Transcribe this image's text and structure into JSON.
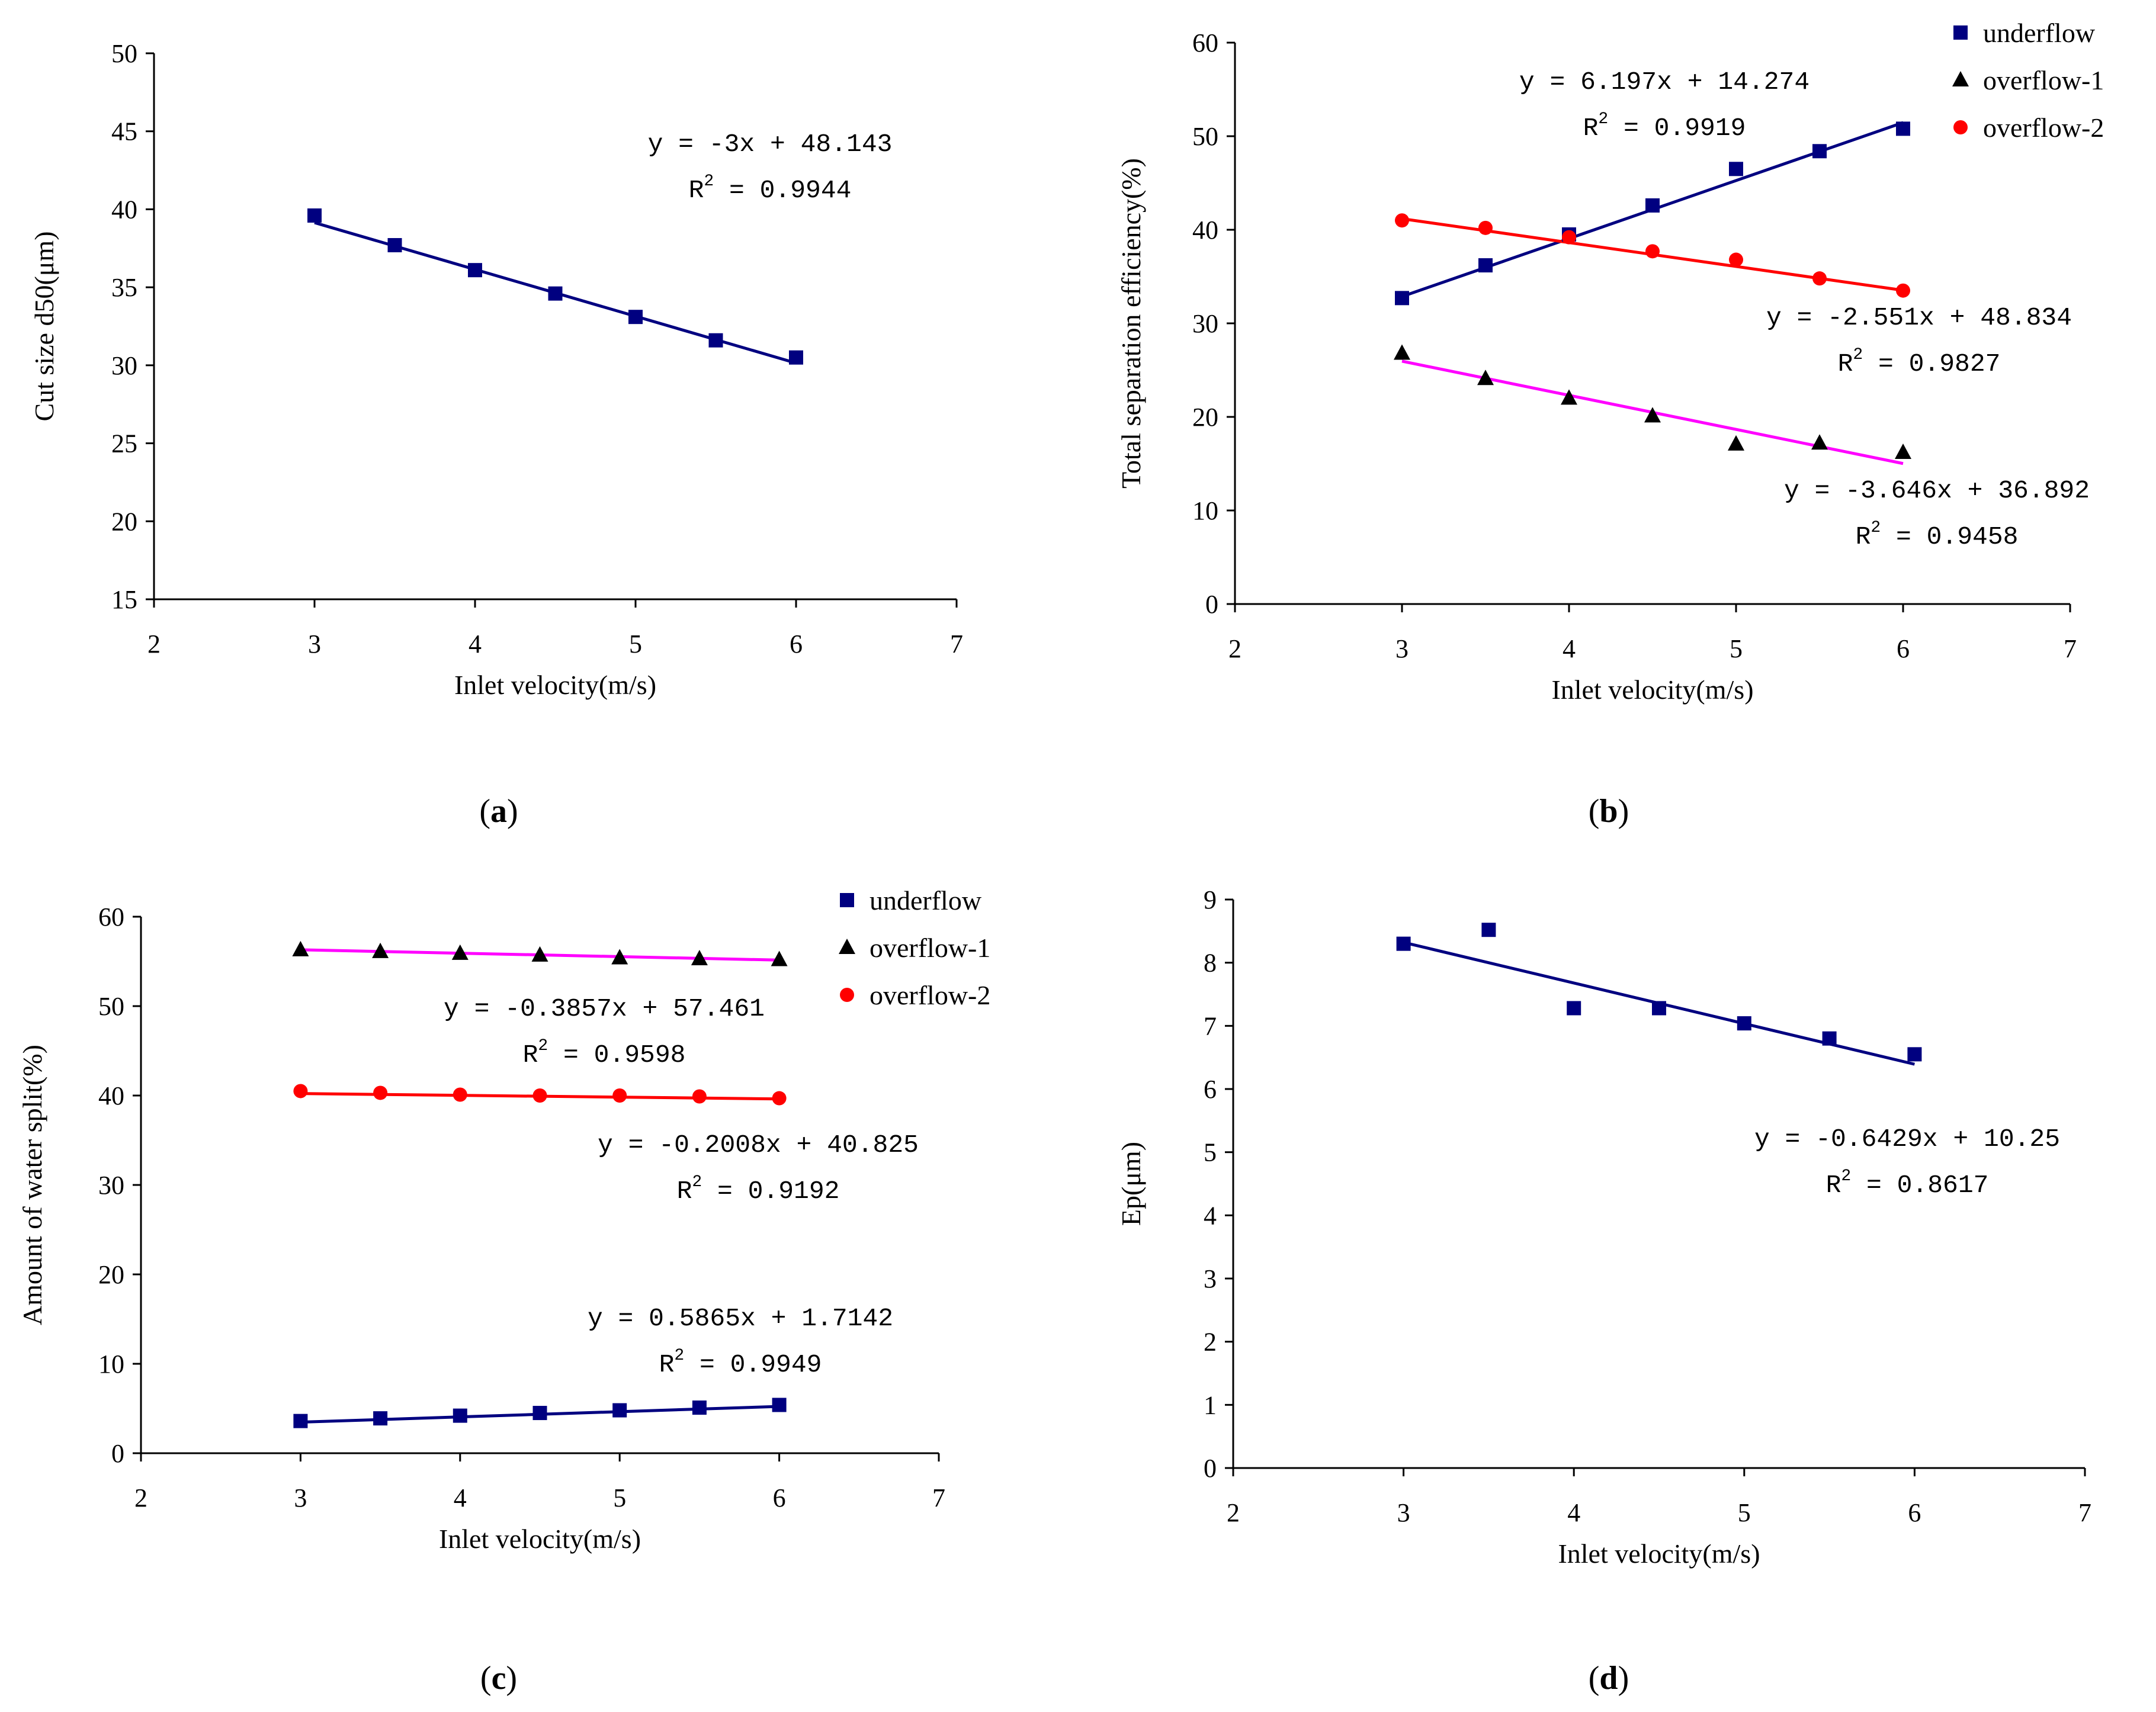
{
  "chart_data": [
    {
      "type": "scatter",
      "panel": "a",
      "xlabel": "Inlet velocity(m/s)",
      "ylabel": "Cut size d50(μm)",
      "xlim": [
        2,
        7
      ],
      "ylim": [
        15,
        50
      ],
      "xticks": [
        2,
        3,
        4,
        5,
        6,
        7
      ],
      "yticks": [
        15,
        20,
        25,
        30,
        35,
        40,
        45,
        50
      ],
      "series": [
        {
          "name": "cut size",
          "marker": "square",
          "color": "#000080",
          "line_color": "#000080",
          "x": [
            3,
            3.5,
            4,
            4.5,
            5,
            5.5,
            6
          ],
          "y": [
            39.6,
            37.7,
            36.1,
            34.6,
            33.1,
            31.6,
            30.5
          ],
          "fit": {
            "slope": -3,
            "intercept": 48.143
          }
        }
      ],
      "annotations": [
        {
          "eq": "y = -3x + 48.143",
          "r2": "= 0.9944"
        }
      ],
      "legend": []
    },
    {
      "type": "scatter",
      "panel": "b",
      "xlabel": "Inlet velocity(m/s)",
      "ylabel": "Total separation efficiency(%)",
      "xlim": [
        2,
        7
      ],
      "ylim": [
        0,
        60
      ],
      "xticks": [
        2,
        3,
        4,
        5,
        6,
        7
      ],
      "yticks": [
        0,
        10,
        20,
        30,
        40,
        50,
        60
      ],
      "series": [
        {
          "name": "underflow",
          "marker": "square",
          "color": "#000080",
          "line_color": "#000080",
          "x": [
            3,
            3.5,
            4,
            4.5,
            5,
            5.5,
            6
          ],
          "y": [
            32.7,
            36.2,
            39.5,
            42.6,
            46.5,
            48.4,
            50.8
          ],
          "fit": {
            "slope": 6.197,
            "intercept": 14.274
          }
        },
        {
          "name": "overflow-1",
          "marker": "triangle",
          "color": "#000000",
          "line_color": "#ff00ff",
          "x": [
            3,
            3.5,
            4,
            4.5,
            5,
            5.5,
            6
          ],
          "y": [
            26.8,
            24.1,
            22.0,
            20.1,
            17.1,
            17.2,
            16.2
          ],
          "fit": {
            "slope": -3.646,
            "intercept": 36.892
          }
        },
        {
          "name": "overflow-2",
          "marker": "circle",
          "color": "#ff0000",
          "line_color": "#ff0000",
          "x": [
            3,
            3.5,
            4,
            4.5,
            5,
            5.5,
            6
          ],
          "y": [
            41.0,
            40.2,
            39.2,
            37.7,
            36.8,
            34.8,
            33.5
          ],
          "fit": {
            "slope": -2.551,
            "intercept": 48.834
          }
        }
      ],
      "annotations": [
        {
          "eq": "y = 6.197x + 14.274",
          "r2": "= 0.9919"
        },
        {
          "eq": "y = -2.551x + 48.834",
          "r2": "= 0.9827"
        },
        {
          "eq": "y = -3.646x + 36.892",
          "r2": "= 0.9458"
        }
      ],
      "legend": [
        "underflow",
        "overflow-1",
        "overflow-2"
      ]
    },
    {
      "type": "scatter",
      "panel": "c",
      "xlabel": "Inlet velocity(m/s)",
      "ylabel": "Amount of water split(%)",
      "xlim": [
        2,
        7
      ],
      "ylim": [
        0,
        60
      ],
      "xticks": [
        2,
        3,
        4,
        5,
        6,
        7
      ],
      "yticks": [
        0,
        10,
        20,
        30,
        40,
        50,
        60
      ],
      "series": [
        {
          "name": "underflow",
          "marker": "square",
          "color": "#000080",
          "line_color": "#000080",
          "x": [
            3,
            3.5,
            4,
            4.5,
            5,
            5.5,
            6
          ],
          "y": [
            3.6,
            3.9,
            4.2,
            4.5,
            4.8,
            5.1,
            5.4
          ],
          "fit": {
            "slope": 0.5865,
            "intercept": 1.7142
          }
        },
        {
          "name": "overflow-1",
          "marker": "triangle",
          "color": "#000000",
          "line_color": "#ff00ff",
          "x": [
            3,
            3.5,
            4,
            4.5,
            5,
            5.5,
            6
          ],
          "y": [
            56.3,
            56.1,
            55.9,
            55.7,
            55.4,
            55.3,
            55.2
          ],
          "fit": {
            "slope": -0.3857,
            "intercept": 57.461
          }
        },
        {
          "name": "overflow-2",
          "marker": "circle",
          "color": "#ff0000",
          "line_color": "#ff0000",
          "x": [
            3,
            3.5,
            4,
            4.5,
            5,
            5.5,
            6
          ],
          "y": [
            40.5,
            40.3,
            40.1,
            40.0,
            40.0,
            39.9,
            39.7
          ],
          "fit": {
            "slope": -0.2008,
            "intercept": 40.825
          }
        }
      ],
      "annotations": [
        {
          "eq": "y = -0.3857x + 57.461",
          "r2": "= 0.9598"
        },
        {
          "eq": "y = -0.2008x + 40.825",
          "r2": "= 0.9192"
        },
        {
          "eq": "y = 0.5865x + 1.7142",
          "r2": "= 0.9949"
        }
      ],
      "legend": [
        "underflow",
        "overflow-1",
        "overflow-2"
      ]
    },
    {
      "type": "scatter",
      "panel": "d",
      "xlabel": "Inlet velocity(m/s)",
      "ylabel": "Ep(μm)",
      "xlim": [
        2,
        7
      ],
      "ylim": [
        0,
        9
      ],
      "xticks": [
        2,
        3,
        4,
        5,
        6,
        7
      ],
      "yticks": [
        0,
        1,
        2,
        3,
        4,
        5,
        6,
        7,
        8,
        9
      ],
      "series": [
        {
          "name": "Ep",
          "marker": "square",
          "color": "#000080",
          "line_color": "#000080",
          "x": [
            3,
            3.5,
            4,
            4.5,
            5,
            5.5,
            6
          ],
          "y": [
            8.3,
            8.52,
            7.28,
            7.28,
            7.04,
            6.8,
            6.55
          ],
          "fit": {
            "slope": -0.6429,
            "intercept": 10.25
          }
        }
      ],
      "annotations": [
        {
          "eq": "y = -0.6429x + 10.25",
          "r2": "= 0.8617"
        }
      ],
      "legend": []
    }
  ],
  "captions": [
    {
      "open": "(",
      "letter": "a",
      "close": ")"
    },
    {
      "open": "(",
      "letter": "b",
      "close": ")"
    },
    {
      "open": "(",
      "letter": "c",
      "close": ")"
    },
    {
      "open": "(",
      "letter": "d",
      "close": ")"
    }
  ],
  "r2_symbol": {
    "r": "R",
    "sup": "2"
  }
}
